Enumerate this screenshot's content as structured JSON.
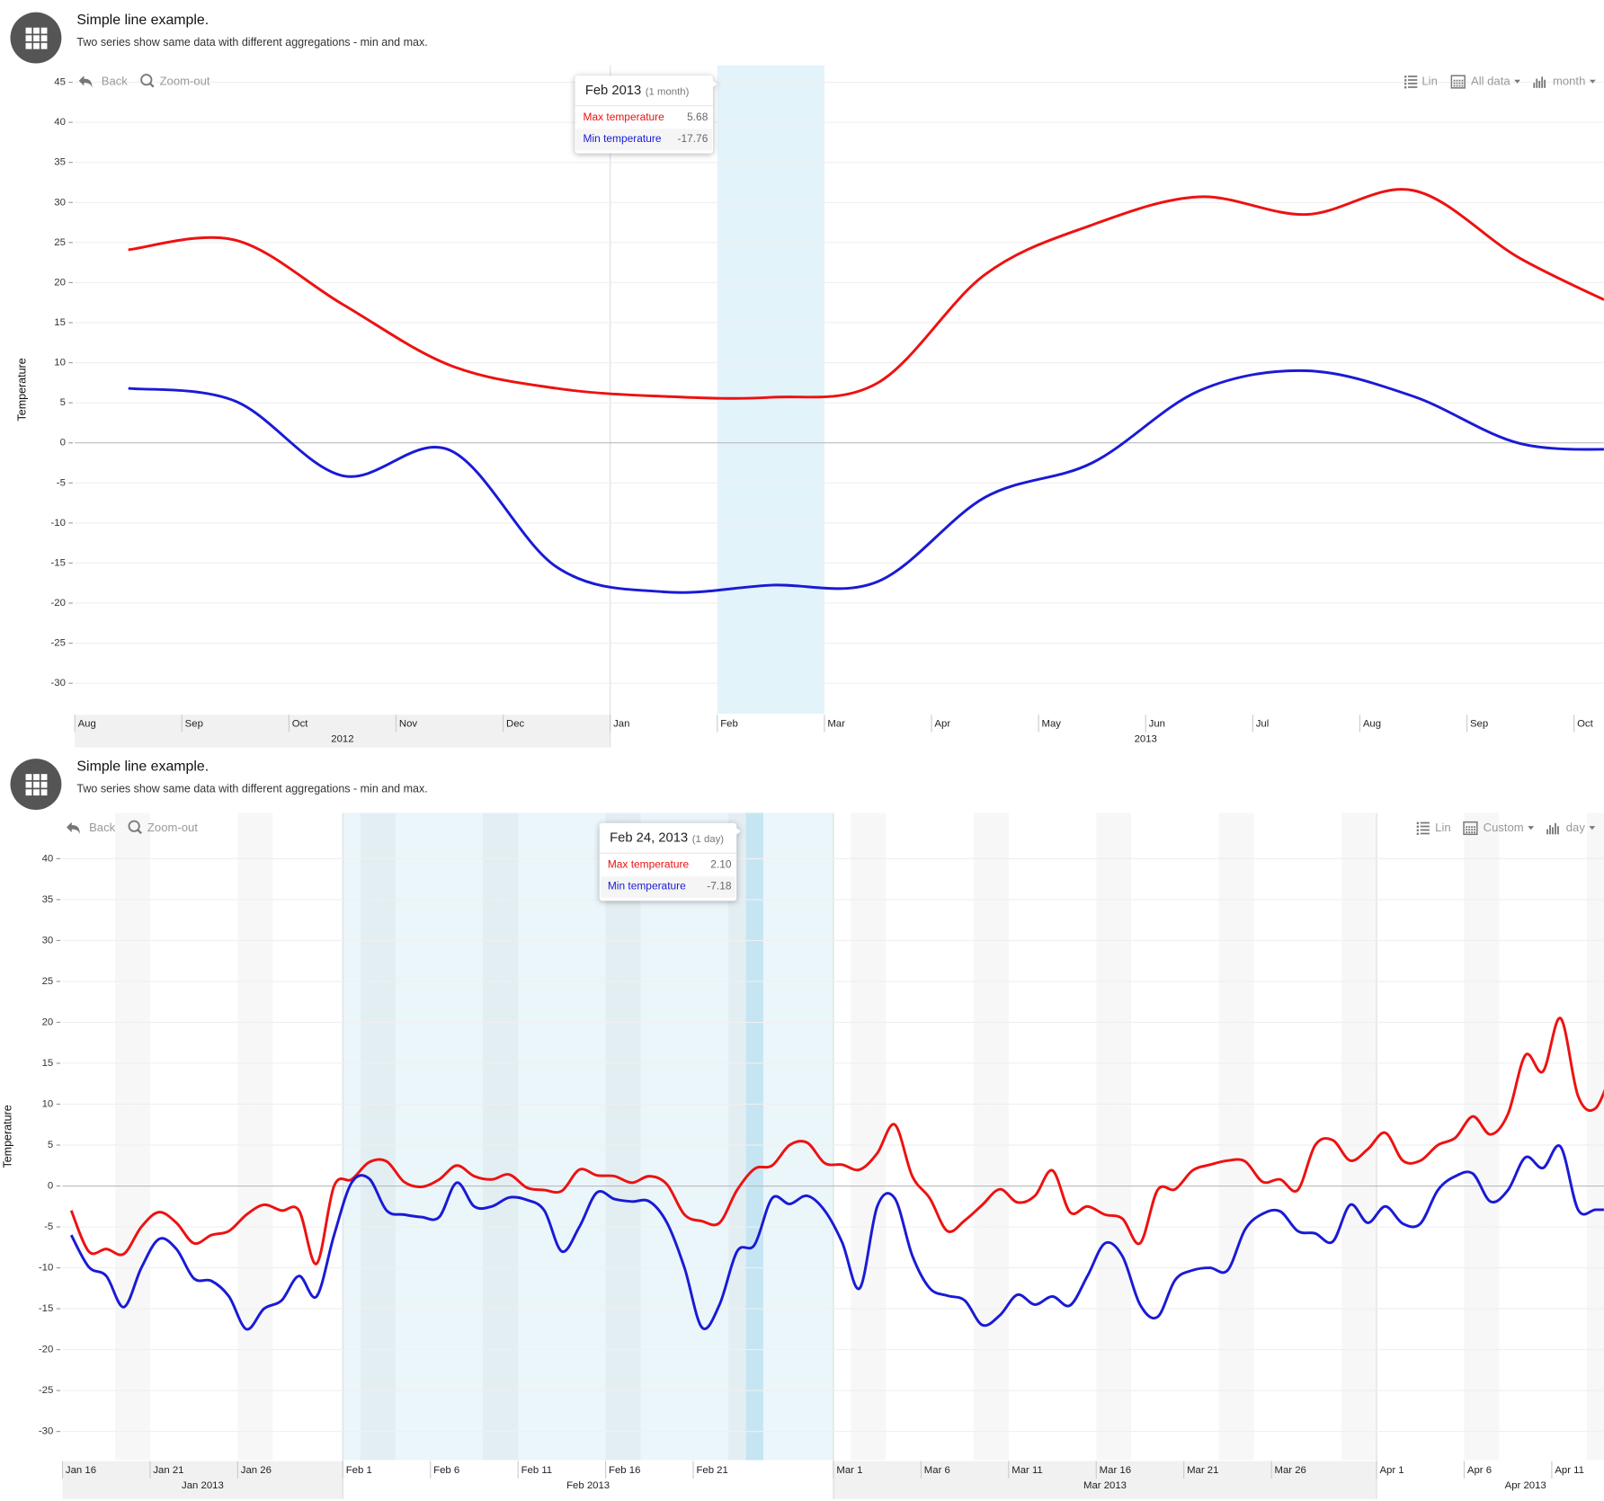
{
  "chart_data": [
    {
      "type": "line",
      "title": "Simple line example.",
      "subtitle": "Two series show same data with different aggregations - min and max.",
      "y_label": "Temperature",
      "toolbar": {
        "back": "Back",
        "zoom_out": "Zoom-out",
        "scale": "Lin",
        "range": "All data",
        "interval": "month"
      },
      "x": [
        "2012-08",
        "2012-09",
        "2012-10",
        "2012-11",
        "2012-12",
        "2013-01",
        "2013-02",
        "2013-03",
        "2013-04",
        "2013-05",
        "2013-06",
        "2013-07",
        "2013-08",
        "2013-09",
        "2013-10"
      ],
      "xlim": [
        "2012-08",
        "2013-11"
      ],
      "xticks": [
        {
          "value": "2012-08",
          "label": "Aug"
        },
        {
          "value": "2012-09",
          "label": "Sep"
        },
        {
          "value": "2012-10",
          "label": "Oct"
        },
        {
          "value": "2012-11",
          "label": "Nov"
        },
        {
          "value": "2012-12",
          "label": "Dec"
        },
        {
          "value": "2013-01",
          "label": "Jan"
        },
        {
          "value": "2013-02",
          "label": "Feb"
        },
        {
          "value": "2013-03",
          "label": "Mar"
        },
        {
          "value": "2013-04",
          "label": "Apr"
        },
        {
          "value": "2013-05",
          "label": "May"
        },
        {
          "value": "2013-06",
          "label": "Jun"
        },
        {
          "value": "2013-07",
          "label": "Jul"
        },
        {
          "value": "2013-08",
          "label": "Aug"
        },
        {
          "value": "2013-09",
          "label": "Sep"
        },
        {
          "value": "2013-10",
          "label": "Oct"
        }
      ],
      "x_groups": [
        {
          "value": "2012-01",
          "label": "2012"
        },
        {
          "value": "2013-01",
          "label": "2013"
        }
      ],
      "ylim": [
        -33.8,
        47.1
      ],
      "yticks": [
        -30,
        -25,
        -20,
        -15,
        -10,
        -5,
        0,
        5,
        10,
        15,
        20,
        25,
        30,
        35,
        40,
        45
      ],
      "grid": true,
      "series": [
        {
          "name": "Max temperature",
          "color": "#ee1111",
          "values": [
            24.1,
            25.3,
            17.3,
            9.7,
            6.8,
            5.8,
            5.68,
            7.5,
            21,
            27.2,
            30.7,
            28.5,
            31.5,
            23,
            16.5
          ]
        },
        {
          "name": "Min temperature",
          "color": "#1a1ad6",
          "values": [
            6.8,
            5.2,
            -4.1,
            -0.9,
            -15.5,
            -18.6,
            -17.76,
            -17.3,
            -6.8,
            -2.5,
            6.5,
            9.0,
            5.8,
            -0.1,
            -0.8
          ]
        }
      ],
      "tooltip": {
        "x": "2013-02",
        "title": "Feb 2013",
        "period": "(1 month)",
        "values": [
          5.68,
          -17.76
        ]
      }
    },
    {
      "type": "line",
      "title": "Simple line example.",
      "subtitle": "Two series show same data with different aggregations - min and max.",
      "y_label": "Temperature",
      "toolbar": {
        "back": "Back",
        "zoom_out": "Zoom-out",
        "scale": "Lin",
        "range": "Custom",
        "interval": "day"
      },
      "x": [
        "2013-01-16",
        "2013-01-17",
        "2013-01-18",
        "2013-01-19",
        "2013-01-20",
        "2013-01-21",
        "2013-01-22",
        "2013-01-23",
        "2013-01-24",
        "2013-01-25",
        "2013-01-26",
        "2013-01-27",
        "2013-01-28",
        "2013-01-29",
        "2013-01-30",
        "2013-01-31",
        "2013-02-01",
        "2013-02-02",
        "2013-02-03",
        "2013-02-04",
        "2013-02-05",
        "2013-02-06",
        "2013-02-07",
        "2013-02-08",
        "2013-02-09",
        "2013-02-10",
        "2013-02-11",
        "2013-02-12",
        "2013-02-13",
        "2013-02-14",
        "2013-02-15",
        "2013-02-16",
        "2013-02-17",
        "2013-02-18",
        "2013-02-19",
        "2013-02-20",
        "2013-02-21",
        "2013-02-22",
        "2013-02-23",
        "2013-02-24",
        "2013-02-25",
        "2013-02-26",
        "2013-02-27",
        "2013-02-28",
        "2013-03-01",
        "2013-03-02",
        "2013-03-03",
        "2013-03-04",
        "2013-03-05",
        "2013-03-06",
        "2013-03-07",
        "2013-03-08",
        "2013-03-09",
        "2013-03-10",
        "2013-03-11",
        "2013-03-12",
        "2013-03-13",
        "2013-03-14",
        "2013-03-15",
        "2013-03-16",
        "2013-03-17",
        "2013-03-18",
        "2013-03-19",
        "2013-03-20",
        "2013-03-21",
        "2013-03-22",
        "2013-03-23",
        "2013-03-24",
        "2013-03-25",
        "2013-03-26",
        "2013-03-27",
        "2013-03-28",
        "2013-03-29",
        "2013-03-30",
        "2013-03-31",
        "2013-04-01",
        "2013-04-02",
        "2013-04-03",
        "2013-04-04",
        "2013-04-05",
        "2013-04-06",
        "2013-04-07",
        "2013-04-08",
        "2013-04-09",
        "2013-04-10",
        "2013-04-11",
        "2013-04-12",
        "2013-04-13",
        "2013-04-14"
      ],
      "xlim": [
        "2013-01-16",
        "2013-04-18"
      ],
      "xticks": [
        {
          "value": "2013-01-16",
          "label": "Jan 16"
        },
        {
          "value": "2013-01-21",
          "label": "Jan 21"
        },
        {
          "value": "2013-01-26",
          "label": "Jan 26"
        },
        {
          "value": "2013-02-01",
          "label": "Feb 1"
        },
        {
          "value": "2013-02-06",
          "label": "Feb 6"
        },
        {
          "value": "2013-02-11",
          "label": "Feb 11"
        },
        {
          "value": "2013-02-16",
          "label": "Feb 16"
        },
        {
          "value": "2013-02-21",
          "label": "Feb 21"
        },
        {
          "value": "2013-03-01",
          "label": "Mar 1"
        },
        {
          "value": "2013-03-06",
          "label": "Mar 6"
        },
        {
          "value": "2013-03-11",
          "label": "Mar 11"
        },
        {
          "value": "2013-03-16",
          "label": "Mar 16"
        },
        {
          "value": "2013-03-21",
          "label": "Mar 21"
        },
        {
          "value": "2013-03-26",
          "label": "Mar 26"
        },
        {
          "value": "2013-04-01",
          "label": "Apr 1"
        },
        {
          "value": "2013-04-06",
          "label": "Apr 6"
        },
        {
          "value": "2013-04-11",
          "label": "Apr 11"
        }
      ],
      "x_groups": [
        {
          "value": "2013-01-01",
          "label": "Jan 2013"
        },
        {
          "value": "2013-02-01",
          "label": "Feb 2013"
        },
        {
          "value": "2013-03-01",
          "label": "Mar 2013"
        },
        {
          "value": "2013-04-01",
          "label": "Apr 2013"
        }
      ],
      "ylim": [
        -33.5,
        45.6
      ],
      "yticks": [
        -30,
        -25,
        -20,
        -15,
        -10,
        -5,
        0,
        5,
        10,
        15,
        20,
        25,
        30,
        35,
        40
      ],
      "grid": true,
      "series": [
        {
          "name": "Max temperature",
          "color": "#ee1111",
          "values": [
            -3,
            -8,
            -7.7,
            -8.3,
            -5,
            -3.2,
            -4.5,
            -7,
            -6,
            -5.5,
            -3.5,
            -2.3,
            -3,
            -3,
            -9.5,
            0,
            0.8,
            2.9,
            3,
            0.5,
            -0.1,
            0.8,
            2.5,
            1.2,
            0.8,
            1.4,
            -0.2,
            -0.5,
            -0.6,
            2,
            1.3,
            1.2,
            0.4,
            1.2,
            0.2,
            -3.5,
            -4.3,
            -4.5,
            -0.5,
            2.1,
            2.5,
            5,
            5.3,
            2.8,
            2.6,
            2,
            4,
            7.5,
            1.2,
            -1.5,
            -5.5,
            -4.2,
            -2.3,
            -0.4,
            -2,
            -1.2,
            1.9,
            -3.2,
            -2.5,
            -3.5,
            -4,
            -7,
            -0.5,
            -0.4,
            1.9,
            2.6,
            3.1,
            3,
            0.5,
            0.8,
            -0.5,
            5,
            5.6,
            3.1,
            4.5,
            6.5,
            3.1,
            3.1,
            5,
            5.9,
            8.5,
            6.3,
            8.8,
            16,
            14,
            20.5,
            11,
            9.5,
            14.5
          ]
        },
        {
          "name": "Min temperature",
          "color": "#1a1ad6",
          "values": [
            -6,
            -9.9,
            -11,
            -14.8,
            -10,
            -6.5,
            -7.7,
            -11.3,
            -11.6,
            -13.5,
            -17.5,
            -15,
            -14,
            -11,
            -13.5,
            -6,
            0.4,
            0.9,
            -3,
            -3.5,
            -3.8,
            -3.8,
            0.4,
            -2.5,
            -2.5,
            -1.4,
            -1.7,
            -3,
            -8,
            -5,
            -0.8,
            -1.6,
            -1.9,
            -1.9,
            -4.5,
            -10,
            -17.3,
            -14.5,
            -8,
            -7.18,
            -1.5,
            -2.2,
            -1.2,
            -3,
            -6.9,
            -12.5,
            -2.5,
            -1.5,
            -8.5,
            -12.5,
            -13.4,
            -14,
            -17,
            -15.8,
            -13.3,
            -14.5,
            -13.5,
            -14.6,
            -11,
            -7,
            -8.6,
            -14.5,
            -16,
            -11.5,
            -10.3,
            -10,
            -10.3,
            -5.3,
            -3.4,
            -3.1,
            -5.5,
            -5.8,
            -6.8,
            -2.3,
            -4.5,
            -2.5,
            -4.6,
            -4.6,
            -0.5,
            1.2,
            1.5,
            -1.9,
            -0.5,
            3.5,
            2.2,
            4.8,
            -2.9,
            -2.9,
            -2.9
          ]
        }
      ],
      "tooltip": {
        "x": "2013-02-24",
        "title": "Feb 24, 2013",
        "period": "(1 day)",
        "values": [
          {
            "value": 2.1,
            "label": "2.10"
          },
          -7.18
        ]
      }
    }
  ]
}
